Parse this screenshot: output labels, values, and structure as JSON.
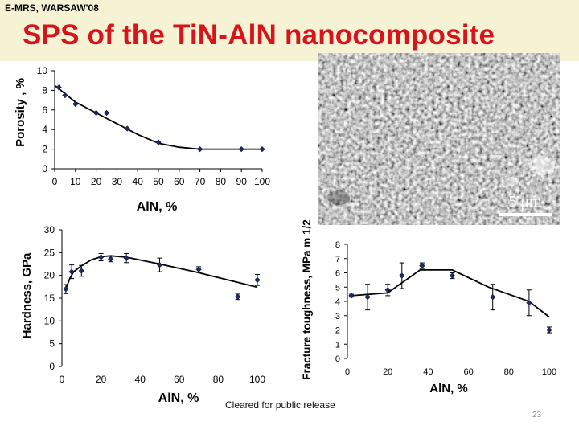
{
  "header": {
    "conference": "E-MRS, WARSAW'08",
    "title": "SPS of the TiN-AlN nanocomposite"
  },
  "micrograph": {
    "scale_label": "5 μm"
  },
  "footer": {
    "release": "Cleared for public release",
    "page_number": "23"
  },
  "chart_data": [
    {
      "type": "line",
      "id": "porosity",
      "ylabel": "Porosity , %",
      "xlabel": "AlN, %",
      "xlim": [
        0,
        100
      ],
      "ylim": [
        0,
        10
      ],
      "x_ticks": [
        0,
        10,
        20,
        30,
        40,
        50,
        60,
        70,
        80,
        90,
        100
      ],
      "y_ticks": [
        0,
        2,
        4,
        6,
        8,
        10
      ],
      "grid": false,
      "points": [
        {
          "x": 2,
          "y": 8.3
        },
        {
          "x": 5,
          "y": 7.5
        },
        {
          "x": 10,
          "y": 6.6
        },
        {
          "x": 20,
          "y": 5.7
        },
        {
          "x": 25,
          "y": 5.7
        },
        {
          "x": 35,
          "y": 4.1
        },
        {
          "x": 50,
          "y": 2.7
        },
        {
          "x": 70,
          "y": 2.0
        },
        {
          "x": 90,
          "y": 2.0
        },
        {
          "x": 100,
          "y": 2.0
        }
      ],
      "trend": [
        {
          "x": 0,
          "y": 8.5
        },
        {
          "x": 10,
          "y": 6.8
        },
        {
          "x": 20,
          "y": 5.7
        },
        {
          "x": 30,
          "y": 4.6
        },
        {
          "x": 40,
          "y": 3.5
        },
        {
          "x": 50,
          "y": 2.6
        },
        {
          "x": 60,
          "y": 2.2
        },
        {
          "x": 70,
          "y": 2.0
        },
        {
          "x": 100,
          "y": 2.0
        }
      ]
    },
    {
      "type": "line",
      "id": "hardness",
      "ylabel": "Hardness, GPa",
      "xlabel": "AlN, %",
      "xlim": [
        0,
        100
      ],
      "ylim": [
        0,
        30
      ],
      "x_ticks": [
        0,
        20,
        40,
        60,
        80,
        100
      ],
      "y_ticks": [
        0,
        5,
        10,
        15,
        20,
        25,
        30
      ],
      "grid": false,
      "points": [
        {
          "x": 2,
          "y": 17.0,
          "err": 1.0
        },
        {
          "x": 5,
          "y": 20.8,
          "err": 1.5
        },
        {
          "x": 10,
          "y": 21.0,
          "err": 1.2
        },
        {
          "x": 20,
          "y": 24.0,
          "err": 0.8
        },
        {
          "x": 25,
          "y": 23.6,
          "err": 0.6
        },
        {
          "x": 33,
          "y": 23.8,
          "err": 1.0
        },
        {
          "x": 50,
          "y": 22.3,
          "err": 1.5
        },
        {
          "x": 70,
          "y": 21.3,
          "err": 0.6
        },
        {
          "x": 90,
          "y": 15.3,
          "err": 0.6
        },
        {
          "x": 100,
          "y": 19.0,
          "err": 1.2
        }
      ],
      "trend": [
        {
          "x": 2,
          "y": 17.0
        },
        {
          "x": 4,
          "y": 19.3
        },
        {
          "x": 6,
          "y": 20.8
        },
        {
          "x": 10,
          "y": 22.1
        },
        {
          "x": 15,
          "y": 23.4
        },
        {
          "x": 20,
          "y": 24.1
        },
        {
          "x": 25,
          "y": 24.3
        },
        {
          "x": 33,
          "y": 24.0
        },
        {
          "x": 50,
          "y": 22.5
        },
        {
          "x": 70,
          "y": 20.6
        },
        {
          "x": 100,
          "y": 17.4
        }
      ]
    },
    {
      "type": "line",
      "id": "toughness",
      "ylabel": "Fracture toughness, MPa m 1/2",
      "xlabel": "AlN, %",
      "xlim": [
        0,
        100
      ],
      "ylim": [
        0,
        8
      ],
      "x_ticks": [
        0,
        20,
        40,
        60,
        80,
        100
      ],
      "y_ticks": [
        0,
        1,
        2,
        3,
        4,
        5,
        6,
        7,
        8
      ],
      "grid": false,
      "points": [
        {
          "x": 2,
          "y": 4.4,
          "err": 0.1
        },
        {
          "x": 10,
          "y": 4.3,
          "err": 0.9
        },
        {
          "x": 20,
          "y": 4.8,
          "err": 0.4
        },
        {
          "x": 27,
          "y": 5.8,
          "err": 0.9
        },
        {
          "x": 37,
          "y": 6.5,
          "err": 0.2
        },
        {
          "x": 52,
          "y": 5.8,
          "err": 0.2
        },
        {
          "x": 72,
          "y": 4.3,
          "err": 0.9
        },
        {
          "x": 90,
          "y": 3.9,
          "err": 0.9
        },
        {
          "x": 100,
          "y": 2.0,
          "err": 0.2
        }
      ],
      "trend": [
        {
          "x": 2,
          "y": 4.4
        },
        {
          "x": 20,
          "y": 4.6
        },
        {
          "x": 36,
          "y": 6.2
        },
        {
          "x": 52,
          "y": 6.2
        },
        {
          "x": 70,
          "y": 5.0
        },
        {
          "x": 90,
          "y": 4.0
        },
        {
          "x": 100,
          "y": 2.9
        }
      ]
    }
  ]
}
